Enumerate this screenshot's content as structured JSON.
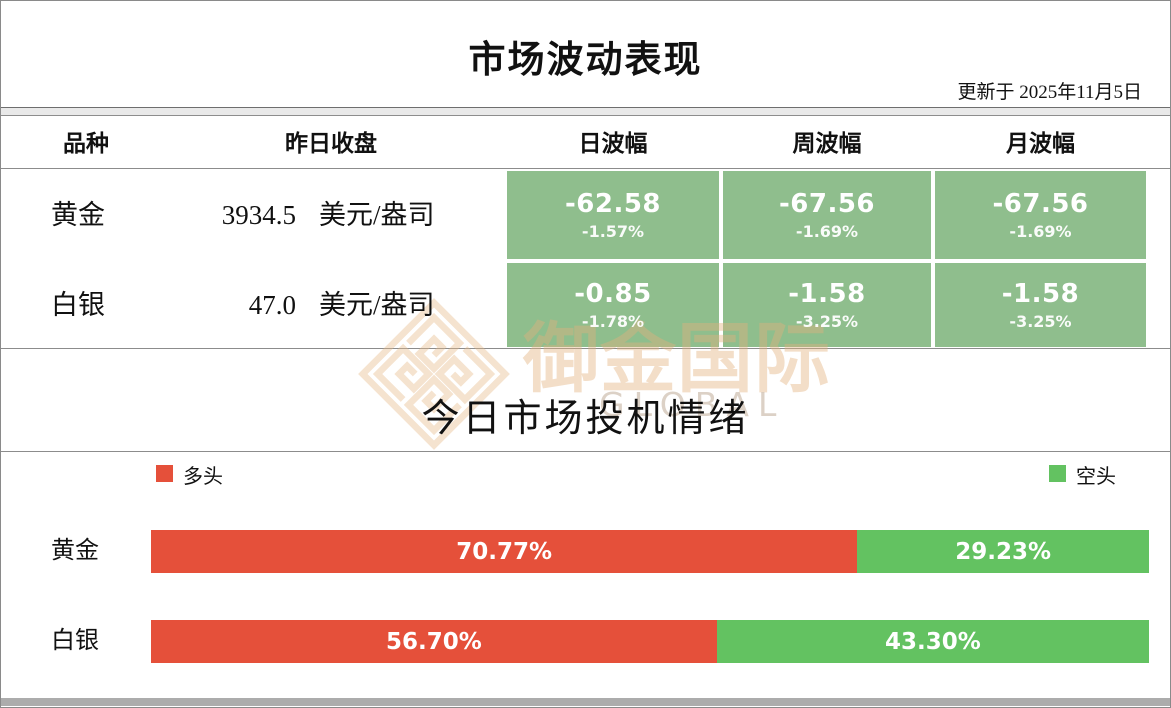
{
  "header": {
    "title": "市场波动表现",
    "updated": "更新于  2025年11月5日"
  },
  "volatility_table": {
    "headers": {
      "variety": "品种",
      "close": "昨日收盘",
      "daily": "日波幅",
      "weekly": "周波幅",
      "monthly": "月波幅"
    },
    "rows": [
      {
        "name": "黄金",
        "close": "3934.5",
        "unit": "美元/盎司",
        "daily": {
          "value": "-62.58",
          "pct": "-1.57%"
        },
        "weekly": {
          "value": "-67.56",
          "pct": "-1.69%"
        },
        "monthly": {
          "value": "-67.56",
          "pct": "-1.69%"
        }
      },
      {
        "name": "白银",
        "close": "47.0",
        "unit": "美元/盎司",
        "daily": {
          "value": "-0.85",
          "pct": "-1.78%"
        },
        "weekly": {
          "value": "-1.58",
          "pct": "-3.25%"
        },
        "monthly": {
          "value": "-1.58",
          "pct": "-3.25%"
        }
      }
    ]
  },
  "sentiment": {
    "title": "今日市场投机情绪",
    "legend": {
      "long": "多头",
      "short": "空头"
    },
    "bars": [
      {
        "name": "黄金",
        "long_pct": 70.77,
        "short_pct": 29.23,
        "long_label": "70.77%",
        "short_label": "29.23%"
      },
      {
        "name": "白银",
        "long_pct": 56.7,
        "short_pct": 43.3,
        "long_label": "56.70%",
        "short_label": "43.30%"
      }
    ]
  },
  "watermark": {
    "cn": "御金国际",
    "en": "GLOBAL"
  },
  "colors": {
    "cell_green": "#8fbe8d",
    "bar_green": "#63c261",
    "bar_red": "#e5503a",
    "watermark_tan": "#f2ddc6"
  },
  "chart_data": [
    {
      "type": "table",
      "title": "市场波动表现",
      "columns": [
        "品种",
        "昨日收盘",
        "日波幅",
        "周波幅",
        "月波幅"
      ],
      "rows": [
        [
          "黄金",
          "3934.5 美元/盎司",
          "-62.58 (-1.57%)",
          "-67.56 (-1.69%)",
          "-67.56 (-1.69%)"
        ],
        [
          "白银",
          "47.0 美元/盎司",
          "-0.85 (-1.78%)",
          "-1.58 (-3.25%)",
          "-1.58 (-3.25%)"
        ]
      ]
    },
    {
      "type": "bar",
      "subtype": "stacked-horizontal",
      "title": "今日市场投机情绪",
      "categories": [
        "黄金",
        "白银"
      ],
      "series": [
        {
          "name": "多头",
          "color": "#e5503a",
          "values": [
            70.77,
            56.7
          ]
        },
        {
          "name": "空头",
          "color": "#63c261",
          "values": [
            29.23,
            43.3
          ]
        }
      ],
      "value_format": "percent",
      "xlim": [
        0,
        100
      ],
      "legend_position": "top",
      "grid": false
    }
  ]
}
